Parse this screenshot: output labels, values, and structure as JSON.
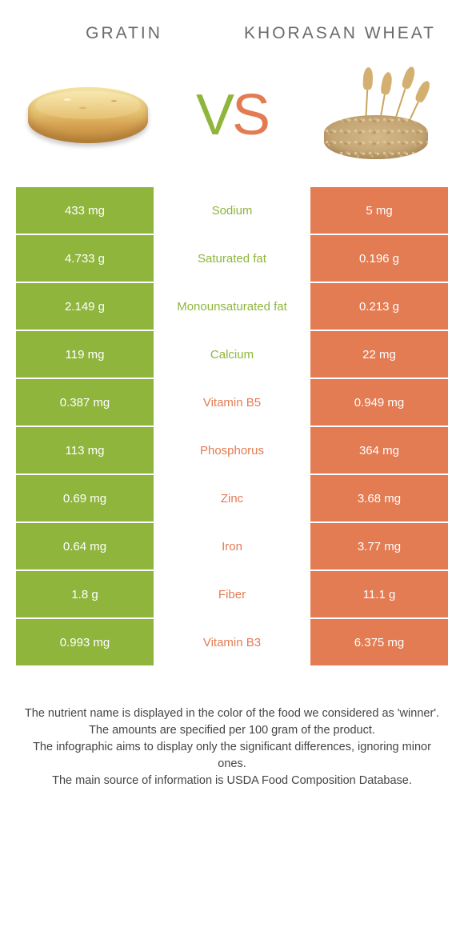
{
  "colors": {
    "green": "#8fb53d",
    "orange": "#e37b53",
    "header_text": "#6b6b6b",
    "footer_text": "#444444",
    "background": "#ffffff"
  },
  "header": {
    "left_title": "GRATIN",
    "right_title": "KHORASAN WHEAT"
  },
  "vs": {
    "v": "V",
    "s": "S"
  },
  "rows": [
    {
      "left": "433 mg",
      "mid": "Sodium",
      "right": "5 mg",
      "winner": "left"
    },
    {
      "left": "4.733 g",
      "mid": "Saturated fat",
      "right": "0.196 g",
      "winner": "left"
    },
    {
      "left": "2.149 g",
      "mid": "Monounsaturated fat",
      "right": "0.213 g",
      "winner": "left"
    },
    {
      "left": "119 mg",
      "mid": "Calcium",
      "right": "22 mg",
      "winner": "left"
    },
    {
      "left": "0.387 mg",
      "mid": "Vitamin B5",
      "right": "0.949 mg",
      "winner": "right"
    },
    {
      "left": "113 mg",
      "mid": "Phosphorus",
      "right": "364 mg",
      "winner": "right"
    },
    {
      "left": "0.69 mg",
      "mid": "Zinc",
      "right": "3.68 mg",
      "winner": "right"
    },
    {
      "left": "0.64 mg",
      "mid": "Iron",
      "right": "3.77 mg",
      "winner": "right"
    },
    {
      "left": "1.8 g",
      "mid": "Fiber",
      "right": "11.1 g",
      "winner": "right"
    },
    {
      "left": "0.993 mg",
      "mid": "Vitamin B3",
      "right": "6.375 mg",
      "winner": "right"
    }
  ],
  "footer": {
    "line1": "The nutrient name is displayed in the color of the food we considered as 'winner'.",
    "line2": "The amounts are specified per 100 gram of the product.",
    "line3": "The infographic aims to display only the significant differences, ignoring minor ones.",
    "line4": "The main source of information is USDA Food Composition Database."
  }
}
